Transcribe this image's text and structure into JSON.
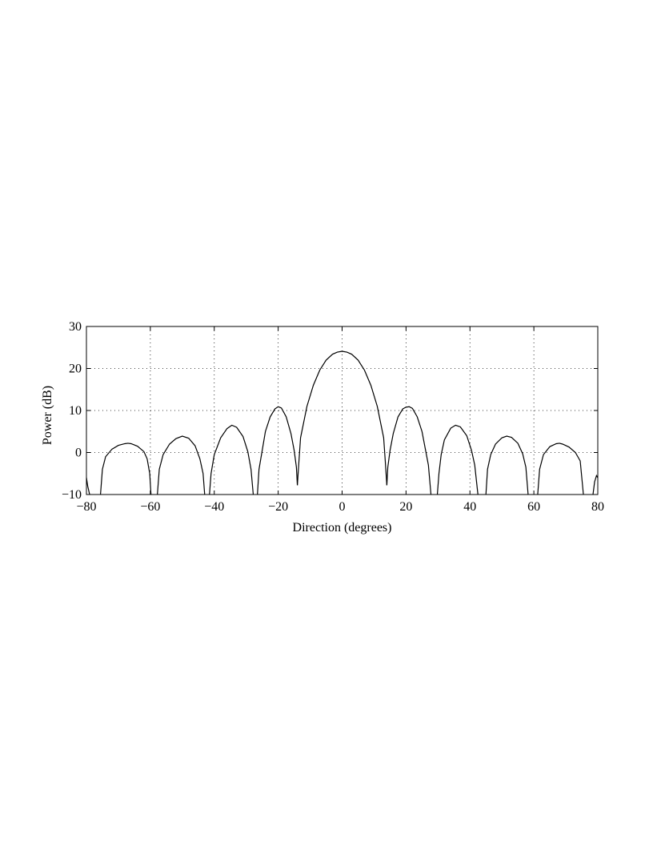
{
  "chart_data": {
    "type": "line",
    "xlabel": "Direction (degrees)",
    "ylabel": "Power (dB)",
    "xlim": [
      -80,
      80
    ],
    "ylim": [
      -10,
      30
    ],
    "xticks": [
      -80,
      -60,
      -40,
      -20,
      0,
      20,
      40,
      60,
      80
    ],
    "xtick_labels": [
      "−80",
      "−60",
      "−40",
      "−20",
      "0",
      "20",
      "40",
      "60",
      "80"
    ],
    "yticks": [
      -10,
      0,
      10,
      20,
      30
    ],
    "ytick_labels": [
      "−10",
      "0",
      "10",
      "20",
      "30"
    ],
    "grid": true,
    "series": [
      {
        "color": "#000000",
        "segments": [
          [
            [
              -80,
              -6
            ],
            [
              -79.6,
              -8
            ],
            [
              -79,
              -10
            ]
          ],
          [
            [
              -75.6,
              -10
            ],
            [
              -75,
              -4
            ],
            [
              -74,
              -1
            ],
            [
              -72,
              0.8
            ],
            [
              -70,
              1.7
            ],
            [
              -68,
              2.1
            ],
            [
              -67,
              2.2
            ],
            [
              -66,
              2.1
            ],
            [
              -64,
              1.5
            ],
            [
              -62,
              0.2
            ],
            [
              -61,
              -1.5
            ],
            [
              -60.2,
              -5
            ],
            [
              -59.8,
              -10
            ]
          ],
          [
            [
              -57.8,
              -10
            ],
            [
              -57.2,
              -4
            ],
            [
              -56,
              -0.5
            ],
            [
              -54,
              2
            ],
            [
              -52,
              3.3
            ],
            [
              -50,
              3.9
            ],
            [
              -48,
              3.4
            ],
            [
              -46,
              1.6
            ],
            [
              -44.5,
              -1.5
            ],
            [
              -43.5,
              -5
            ],
            [
              -43,
              -10
            ]
          ],
          [
            [
              -41.5,
              -10
            ],
            [
              -41,
              -5
            ],
            [
              -40,
              -0.5
            ],
            [
              -38,
              3.5
            ],
            [
              -36,
              5.7
            ],
            [
              -34.5,
              6.5
            ],
            [
              -33,
              6
            ],
            [
              -31,
              3.8
            ],
            [
              -29.5,
              0.2
            ],
            [
              -28.5,
              -4
            ],
            [
              -27.8,
              -10
            ]
          ],
          [
            [
              -26.5,
              -10
            ],
            [
              -26,
              -4
            ],
            [
              -25,
              0.5
            ],
            [
              -24,
              5
            ],
            [
              -22.5,
              8.5
            ],
            [
              -21,
              10.4
            ],
            [
              -20,
              10.9
            ],
            [
              -19,
              10.6
            ],
            [
              -17.5,
              8.5
            ],
            [
              -16,
              4.5
            ],
            [
              -15,
              0.5
            ],
            [
              -14.3,
              -3.5
            ],
            [
              -14,
              -7.8
            ]
          ],
          [
            [
              -14,
              -7.8
            ],
            [
              -13.5,
              -2
            ],
            [
              -13,
              3.5
            ],
            [
              -11,
              11
            ],
            [
              -9,
              16
            ],
            [
              -7,
              19.6
            ],
            [
              -5,
              22
            ],
            [
              -3,
              23.4
            ],
            [
              -1.5,
              23.9
            ],
            [
              0,
              24.1
            ],
            [
              1.5,
              23.9
            ],
            [
              3,
              23.4
            ],
            [
              5,
              22
            ],
            [
              7,
              19.6
            ],
            [
              9,
              16
            ],
            [
              11,
              11
            ],
            [
              13,
              3.5
            ],
            [
              13.5,
              -2
            ],
            [
              14,
              -7.8
            ]
          ],
          [
            [
              14,
              -7.8
            ],
            [
              14.3,
              -3.5
            ],
            [
              15,
              0.5
            ],
            [
              16,
              4.5
            ],
            [
              17.5,
              8.5
            ],
            [
              19,
              10.4
            ],
            [
              20,
              10.8
            ],
            [
              21,
              10.9
            ],
            [
              22,
              10.5
            ],
            [
              23.5,
              8.5
            ],
            [
              25,
              5
            ],
            [
              26,
              1
            ],
            [
              27,
              -3
            ],
            [
              27.8,
              -10
            ]
          ],
          [
            [
              29.8,
              -10
            ],
            [
              30.3,
              -5
            ],
            [
              31,
              -0.5
            ],
            [
              32,
              3
            ],
            [
              34,
              5.8
            ],
            [
              35.5,
              6.5
            ],
            [
              37,
              6.1
            ],
            [
              39,
              4
            ],
            [
              40.5,
              0.5
            ],
            [
              41.5,
              -3
            ],
            [
              42.5,
              -10
            ]
          ],
          [
            [
              45,
              -10
            ],
            [
              45.5,
              -4
            ],
            [
              46.5,
              -0.5
            ],
            [
              48,
              2
            ],
            [
              50,
              3.5
            ],
            [
              51.5,
              3.9
            ],
            [
              53,
              3.6
            ],
            [
              55,
              2.2
            ],
            [
              56.5,
              -0.3
            ],
            [
              57.5,
              -3.5
            ],
            [
              58.2,
              -10
            ]
          ],
          [
            [
              61.2,
              -10
            ],
            [
              61.8,
              -4
            ],
            [
              63,
              -0.5
            ],
            [
              65,
              1.4
            ],
            [
              67,
              2.1
            ],
            [
              68,
              2.2
            ],
            [
              69,
              2
            ],
            [
              71,
              1.3
            ],
            [
              73,
              0
            ],
            [
              74.5,
              -2
            ],
            [
              75.5,
              -10
            ]
          ],
          [
            [
              78.5,
              -10
            ],
            [
              79,
              -7
            ],
            [
              79.6,
              -5.5
            ],
            [
              80,
              -6
            ]
          ]
        ]
      }
    ]
  }
}
